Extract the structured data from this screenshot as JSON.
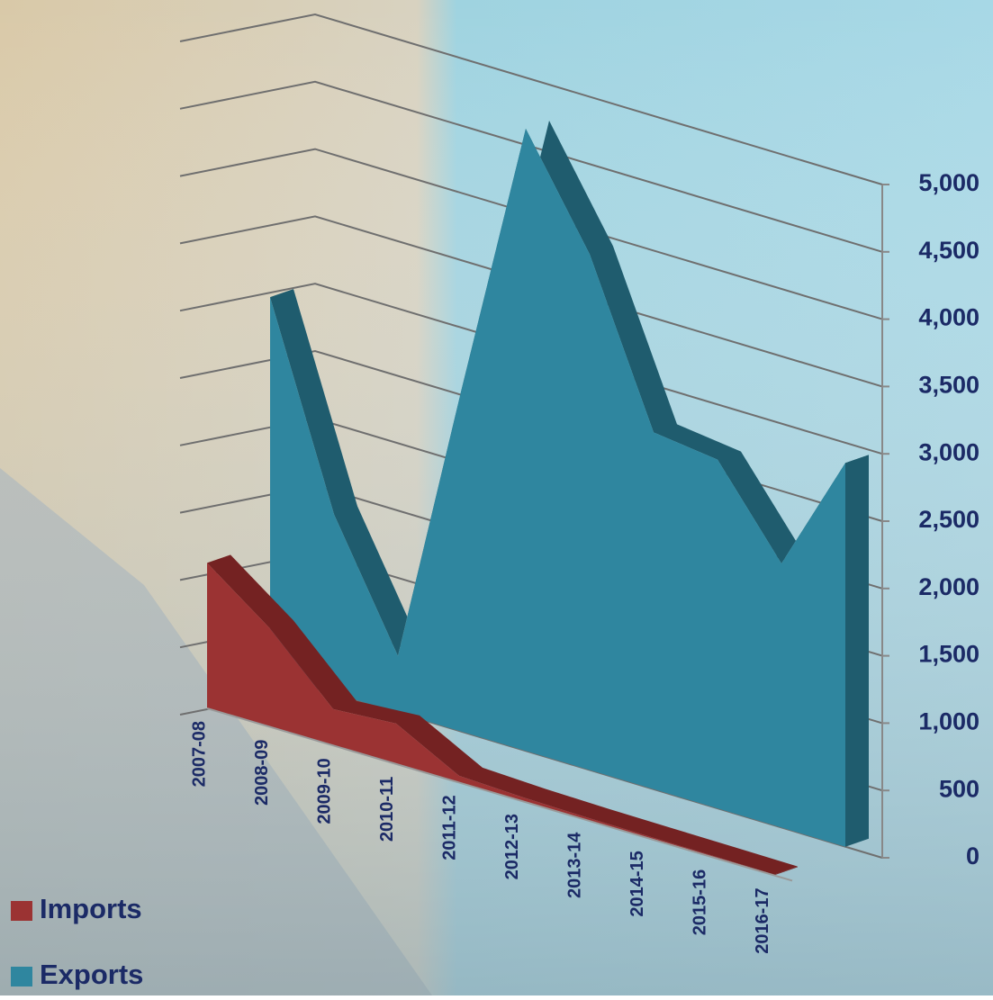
{
  "chart_data": {
    "type": "area3d",
    "categories": [
      "2007-08",
      "2008-09",
      "2009-10",
      "2010-11",
      "2011-12",
      "2012-13",
      "2013-14",
      "2014-15",
      "2015-16",
      "2016-17"
    ],
    "series": [
      {
        "name": "Imports",
        "color": "#9b3333",
        "side_color": "#742222",
        "values": [
          1080,
          730,
          270,
          300,
          50,
          30,
          20,
          15,
          10,
          5
        ]
      },
      {
        "name": "Exports",
        "color": "#2f869f",
        "side_color": "#1f5c6e",
        "values": [
          2800,
          1330,
          420,
          2550,
          4620,
          3830,
          2650,
          2590,
          1960,
          2850
        ]
      }
    ],
    "ylim": [
      0,
      5000
    ],
    "yticks": [
      0,
      500,
      {
        "value": 1000,
        "label": "1,000"
      },
      {
        "value": 1500,
        "label": "1,500"
      },
      {
        "value": 2000,
        "label": "2,000"
      },
      {
        "value": 2500,
        "label": "2,500"
      },
      {
        "value": 3000,
        "label": "3,000"
      },
      {
        "value": 3500,
        "label": "3,500"
      },
      {
        "value": 4000,
        "label": "4,000"
      },
      {
        "value": 4500,
        "label": "4,500"
      },
      {
        "value": 5000,
        "label": "5,000"
      }
    ],
    "grid": true,
    "legend": "bottom-left"
  }
}
